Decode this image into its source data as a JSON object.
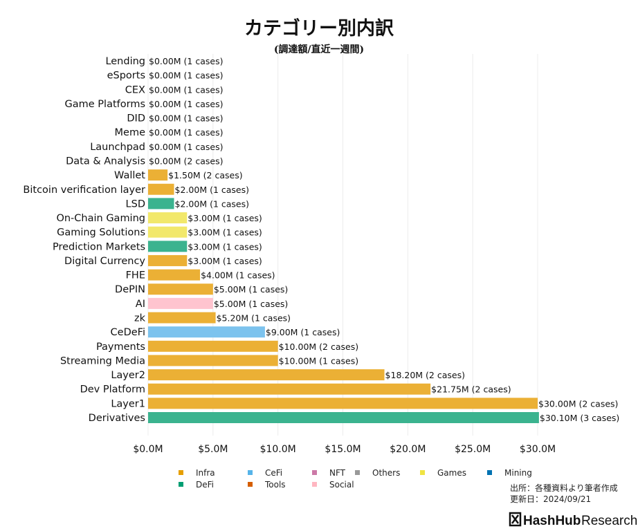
{
  "chart_data": {
    "type": "bar",
    "orientation": "horizontal",
    "title": "カテゴリー別内訳",
    "subtitle": "(調達額/直近一週間)",
    "xlim": [
      0,
      30.1
    ],
    "xticks": [
      0,
      5,
      10,
      15,
      20,
      25,
      30
    ],
    "xtick_labels": [
      "$0.0M",
      "$5.0M",
      "$10.0M",
      "$15.0M",
      "$20.0M",
      "$25.0M",
      "$30.0M"
    ],
    "grid": "vertical",
    "categories": [
      "Lending",
      "eSports",
      "CEX",
      "Game Platforms",
      "DID",
      "Meme",
      "Launchpad",
      "Data & Analysis",
      "Wallet",
      "Bitcoin verification layer",
      "LSD",
      "On-Chain Gaming",
      "Gaming Solutions",
      "Prediction Markets",
      "Digital Currency",
      "FHE",
      "DePIN",
      "AI",
      "zk",
      "CeDeFi",
      "Payments",
      "Streaming Media",
      "Layer2",
      "Dev Platform",
      "Layer1",
      "Derivatives"
    ],
    "values": [
      0,
      0,
      0,
      0,
      0,
      0,
      0,
      0,
      1.5,
      2.0,
      2.0,
      3.0,
      3.0,
      3.0,
      3.0,
      4.0,
      5.0,
      5.0,
      5.2,
      9.0,
      10.0,
      10.0,
      18.2,
      21.75,
      30.0,
      30.1
    ],
    "groups": [
      "Infra",
      "Infra",
      "Infra",
      "Infra",
      "Infra",
      "Infra",
      "Infra",
      "Infra",
      "Infra",
      "Infra",
      "DeFi",
      "Games",
      "Games",
      "DeFi",
      "Infra",
      "Infra",
      "Infra",
      "Social",
      "Infra",
      "CeFi",
      "Infra",
      "Infra",
      "Infra",
      "Infra",
      "Infra",
      "DeFi"
    ],
    "data_labels": [
      "$0.00M (1 cases)",
      "$0.00M (1 cases)",
      "$0.00M (1 cases)",
      "$0.00M (1 cases)",
      "$0.00M (1 cases)",
      "$0.00M (1 cases)",
      "$0.00M (1 cases)",
      "$0.00M (2 cases)",
      "$1.50M (2 cases)",
      "$2.00M (1 cases)",
      "$2.00M (1 cases)",
      "$3.00M (1 cases)",
      "$3.00M (1 cases)",
      "$3.00M (1 cases)",
      "$3.00M (1 cases)",
      "$4.00M (1 cases)",
      "$5.00M (1 cases)",
      "$5.00M (1 cases)",
      "$5.20M (1 cases)",
      "$9.00M (1 cases)",
      "$10.00M (2 cases)",
      "$10.00M (1 cases)",
      "$18.20M (2 cases)",
      "$21.75M (2 cases)",
      "$30.00M (2 cases)",
      "$30.10M (3 cases)"
    ],
    "legend": [
      {
        "name": "Infra",
        "color": "#E69F00"
      },
      {
        "name": "CeFi",
        "color": "#56B4E9"
      },
      {
        "name": "NFT",
        "color": "#CC79A7"
      },
      {
        "name": "Others",
        "color": "#999999"
      },
      {
        "name": "Games",
        "color": "#F0E442"
      },
      {
        "name": "Mining",
        "color": "#0072B2"
      },
      {
        "name": "DeFi",
        "color": "#009E73"
      },
      {
        "name": "Tools",
        "color": "#D55E00"
      },
      {
        "name": "Social",
        "color": "#FFB6C1"
      }
    ],
    "legend_placement": "bottom"
  },
  "bar_colors": {
    "Infra": "#ebb035",
    "DeFi": "#3bb38f",
    "Games": "#f2e86b",
    "CeFi": "#7cc3ee",
    "Social": "#ffc4cf"
  },
  "footer": {
    "source": "出所：各種資料より筆者作成",
    "updated": "更新日：2024/09/21",
    "brand_bold": "HashHub",
    "brand_light": "Research"
  }
}
